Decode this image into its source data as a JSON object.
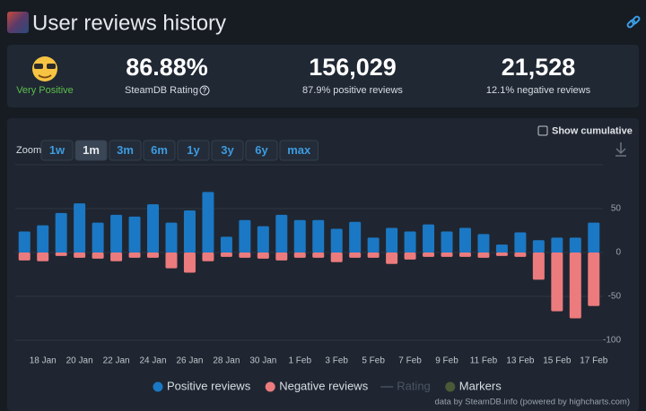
{
  "header": {
    "title": "User reviews history"
  },
  "stats": {
    "rating_word": "Very Positive",
    "items": [
      {
        "value": "86.88%",
        "label": "SteamDB Rating"
      },
      {
        "value": "156,029",
        "label": "87.9% positive reviews"
      },
      {
        "value": "21,528",
        "label": "12.1% negative reviews"
      }
    ]
  },
  "ui": {
    "zoom_label": "Zoom",
    "zoom_buttons": [
      "1w",
      "1m",
      "3m",
      "6m",
      "1y",
      "3y",
      "6y",
      "max"
    ],
    "zoom_selected": "1m",
    "cumulative": "Show cumulative",
    "legend_extra": [
      "Rating",
      "Markers"
    ],
    "credits": "data by SteamDB.info (powered by highcharts.com)"
  },
  "chart_data": {
    "type": "bar",
    "categories": [
      null,
      "18 Jan",
      null,
      "20 Jan",
      null,
      "22 Jan",
      null,
      "24 Jan",
      null,
      "26 Jan",
      null,
      "28 Jan",
      null,
      "30 Jan",
      null,
      "1 Feb",
      null,
      "3 Feb",
      null,
      "5 Feb",
      null,
      "7 Feb",
      null,
      "9 Feb",
      null,
      "11 Feb",
      null,
      "13 Feb",
      null,
      "15 Feb",
      null,
      "17 Feb"
    ],
    "series": [
      {
        "name": "Positive reviews",
        "color": "#1b78c4",
        "values": [
          24,
          31,
          45,
          56,
          34,
          43,
          41,
          55,
          34,
          48,
          69,
          18,
          37,
          30,
          43,
          37,
          37,
          27,
          35,
          17,
          28,
          24,
          32,
          24,
          28,
          21,
          9,
          23,
          14,
          17,
          17,
          34
        ]
      },
      {
        "name": "Negative reviews",
        "color": "#ec7b7e",
        "values": [
          -9,
          -10,
          -4,
          -6,
          -7,
          -10,
          -6,
          -6,
          -18,
          -23,
          -10,
          -5,
          -6,
          -7,
          -9,
          -6,
          -6,
          -11,
          -6,
          -6,
          -13,
          -8,
          -5,
          -5,
          -5,
          -6,
          -4,
          -5,
          -31,
          -67,
          -75,
          -61
        ]
      }
    ],
    "ylim": [
      -100,
      100
    ],
    "yticks": [
      -100,
      -50,
      0,
      50
    ],
    "grid": true
  }
}
